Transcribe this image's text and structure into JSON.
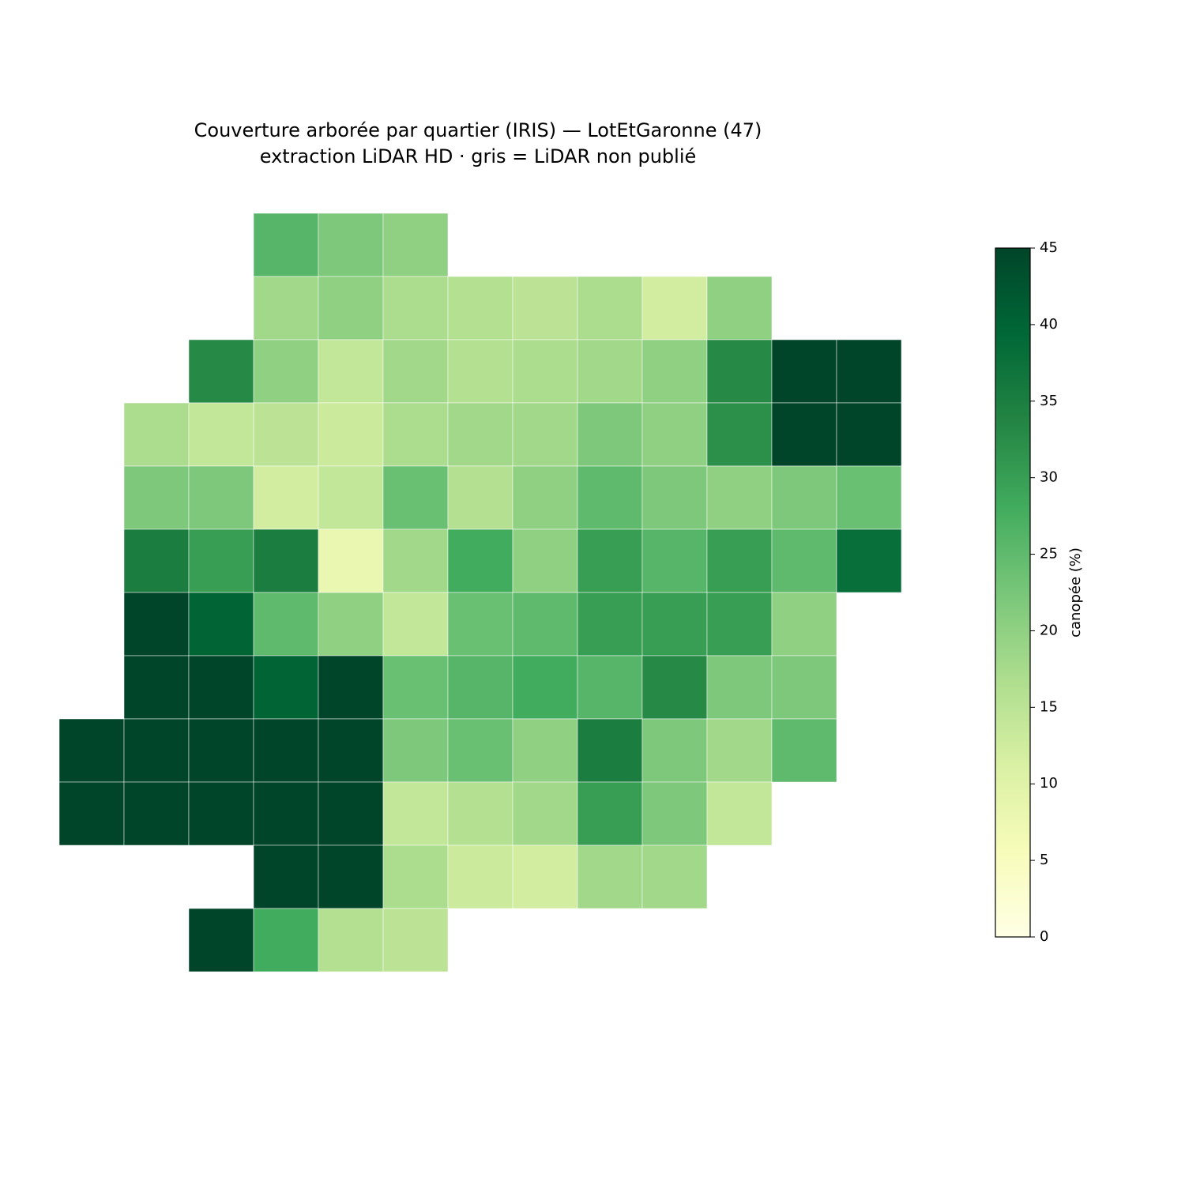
{
  "chart_data": {
    "type": "choropleth",
    "title": "Couverture arborée par quartier (IRIS) — LotEtGaronne (47)",
    "subtitle": "extraction LiDAR HD · gris = LiDAR non publié",
    "colorbar_label": "canopée (%)",
    "colormap": "YlGn",
    "clim": [
      0,
      45
    ],
    "cticks": [
      0,
      5,
      10,
      15,
      20,
      25,
      30,
      35,
      40,
      45
    ],
    "values": [
      26,
      22,
      20,
      18,
      20,
      17,
      16,
      15,
      17,
      12,
      20,
      33,
      20,
      14,
      18,
      16,
      17,
      18,
      20,
      33,
      45,
      45,
      17,
      14,
      15,
      13,
      17,
      18,
      18,
      22,
      20,
      32,
      45,
      45,
      22,
      22,
      12,
      14,
      24,
      16,
      20,
      25,
      22,
      20,
      22,
      24,
      35,
      30,
      35,
      8,
      18,
      28,
      20,
      30,
      26,
      30,
      25,
      38,
      45,
      40,
      25,
      20,
      14,
      24,
      25,
      30,
      30,
      30,
      20,
      45,
      45,
      40,
      45,
      24,
      26,
      28,
      26,
      33,
      22,
      22,
      45,
      45,
      45,
      45,
      45,
      22,
      24,
      20,
      35,
      22,
      18,
      25,
      45,
      45,
      45,
      45,
      45,
      14,
      16,
      18,
      30,
      22,
      14,
      45,
      45,
      17,
      13,
      12,
      18,
      18,
      45,
      28,
      16,
      15
    ]
  }
}
